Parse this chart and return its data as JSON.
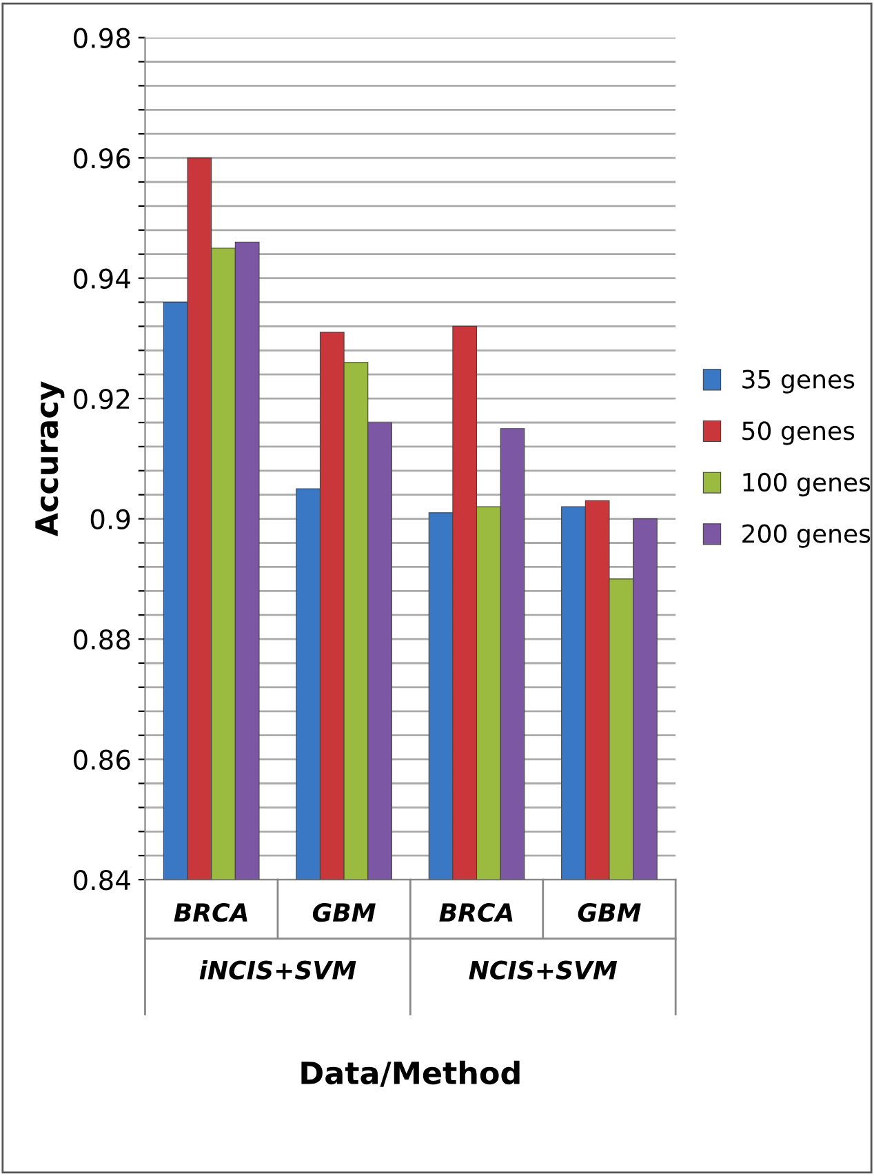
{
  "chart_data": {
    "type": "bar",
    "xlabel": "Data/Method",
    "ylabel": "Accuracy",
    "categories": [
      "BRCA",
      "GBM",
      "BRCA",
      "GBM"
    ],
    "series": [
      {
        "name": "35 genes",
        "color": "#3a78c6",
        "values": [
          0.936,
          0.905,
          0.901,
          0.902
        ]
      },
      {
        "name": "50 genes",
        "color": "#c9373a",
        "values": [
          0.96,
          0.931,
          0.932,
          0.903
        ]
      },
      {
        "name": "100 genes",
        "color": "#9bbb40",
        "values": [
          0.945,
          0.926,
          0.902,
          0.89
        ]
      },
      {
        "name": "200 genes",
        "color": "#7c58a4",
        "values": [
          0.946,
          0.916,
          0.915,
          0.9
        ]
      }
    ],
    "ylim": [
      0.84,
      0.98
    ],
    "yticks": [
      0.84,
      {
        "value": 0.844,
        "label": null
      },
      {
        "value": 0.848,
        "label": null
      },
      {
        "value": 0.852,
        "label": null
      },
      {
        "value": 0.856,
        "label": null
      },
      0.86,
      {
        "value": 0.864,
        "label": null
      },
      {
        "value": 0.868,
        "label": null
      },
      {
        "value": 0.872,
        "label": null
      },
      {
        "value": 0.876,
        "label": null
      },
      0.88,
      {
        "value": 0.884,
        "label": null
      },
      {
        "value": 0.888,
        "label": null
      },
      {
        "value": 0.892,
        "label": null
      },
      {
        "value": 0.896,
        "label": null
      },
      {
        "value": 0.9,
        "label": "0.9"
      },
      {
        "value": 0.904,
        "label": null
      },
      {
        "value": 0.908,
        "label": null
      },
      {
        "value": 0.912,
        "label": null
      },
      {
        "value": 0.916,
        "label": null
      },
      0.92,
      {
        "value": 0.924,
        "label": null
      },
      {
        "value": 0.928,
        "label": null
      },
      {
        "value": 0.932,
        "label": null
      },
      {
        "value": 0.936,
        "label": null
      },
      0.94,
      {
        "value": 0.944,
        "label": null
      },
      {
        "value": 0.948,
        "label": null
      },
      {
        "value": 0.952,
        "label": null
      },
      {
        "value": 0.956,
        "label": null
      },
      0.96,
      {
        "value": 0.964,
        "label": null
      },
      {
        "value": 0.968,
        "label": null
      },
      {
        "value": 0.972,
        "label": null
      },
      {
        "value": 0.976,
        "label": null
      },
      0.98
    ],
    "annotations": [
      "iNCIS+SVM",
      "NCIS+SVM"
    ],
    "grid": "y",
    "legend": "right"
  }
}
